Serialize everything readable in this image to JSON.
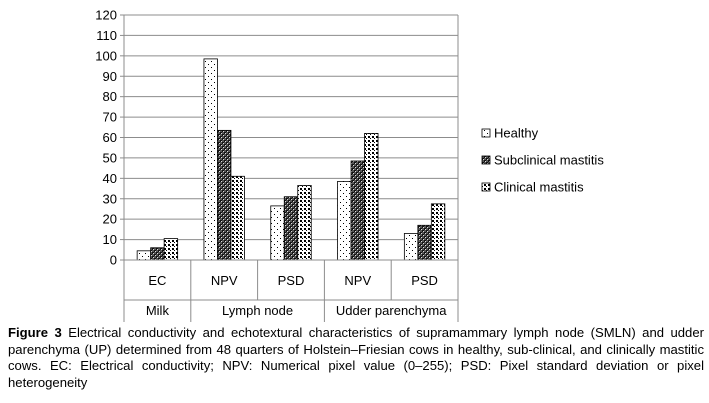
{
  "chart_data": {
    "type": "bar",
    "categories": [
      "EC",
      "NPV",
      "PSD",
      "NPV",
      "PSD"
    ],
    "groups": [
      {
        "label": "Milk",
        "span": 1
      },
      {
        "label": "Lymph node",
        "span": 2
      },
      {
        "label": "Udder parenchyma",
        "span": 2
      }
    ],
    "series": [
      {
        "name": "Healthy",
        "pattern": "sparse-dots",
        "values": [
          4.5,
          98.5,
          26.5,
          38.5,
          13
        ]
      },
      {
        "name": "Subclinical mastitis",
        "pattern": "crosshatch",
        "values": [
          6,
          63.5,
          31,
          48.5,
          17
        ]
      },
      {
        "name": "Clinical mastitis",
        "pattern": "dense-dots",
        "values": [
          10.5,
          41,
          36.5,
          62,
          27.5
        ]
      }
    ],
    "ylim": [
      0,
      120
    ],
    "yticks": [
      "0",
      "10",
      "20",
      "30",
      "40",
      "50",
      "60",
      "70",
      "80",
      "90",
      "100",
      "110",
      "120"
    ],
    "grid": true,
    "legend": "right",
    "title": "",
    "xlabel": "",
    "ylabel": ""
  },
  "caption": {
    "label": "Figure 3",
    "text": " Electrical conductivity and echotextural characteristics of supramammary lymph node (SMLN) and udder parenchyma (UP) determined from 48 quarters of Holstein–Friesian cows in healthy, sub-clinical, and clinically mastitic cows. EC: Electrical conductivity; NPV: Numerical pixel value (0–255); PSD: Pixel standard deviation or pixel heterogeneity"
  }
}
